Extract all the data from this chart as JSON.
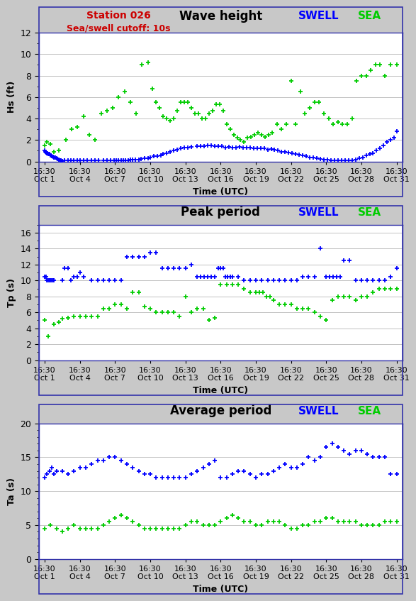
{
  "title1": "Wave height",
  "title2": "Peak period",
  "title3": "Average period",
  "station_label": "Station 026",
  "cutoff_label": "Sea/swell cutoff: 10s",
  "ylabel1": "Hs (ft)",
  "ylabel2": "Tp (s)",
  "ylabel3": "Ta (s)",
  "xlabel": "Time (UTC)",
  "legend_swell": "SWELL",
  "legend_sea": "SEA",
  "swell_color": "#0000ff",
  "sea_color": "#00cc00",
  "bg_color": "#c8c8c8",
  "plot_bg": "#ffffff",
  "title_color": "#000000",
  "station_color": "#cc0000",
  "tick_labels": [
    "16:30\nOct 1",
    "16:30\nOct 4",
    "16:30\nOct 7",
    "16:30\nOct 10",
    "16:30\nOct 13",
    "16:30\nOct 16",
    "16:30\nOct 19",
    "16:30\nOct 22",
    "16:30\nOct 25",
    "16:30\nOct 28",
    "16:30\nOct 31"
  ],
  "xtick_positions": [
    1,
    4,
    7,
    10,
    13,
    16,
    19,
    22,
    25,
    28,
    31
  ],
  "plot1_ylim": [
    0,
    12
  ],
  "plot1_yticks": [
    0,
    2,
    4,
    6,
    8,
    10,
    12
  ],
  "plot2_ylim": [
    0,
    17
  ],
  "plot2_yticks": [
    0,
    2,
    4,
    6,
    8,
    10,
    12,
    14,
    16
  ],
  "plot3_ylim": [
    0,
    20
  ],
  "plot3_yticks": [
    0,
    5,
    10,
    15,
    20
  ],
  "swell_hs_x": [
    1.0,
    1.05,
    1.1,
    1.15,
    1.2,
    1.25,
    1.3,
    1.4,
    1.5,
    1.6,
    1.7,
    1.8,
    1.9,
    2.0,
    2.1,
    2.2,
    2.3,
    2.4,
    2.5,
    2.7,
    3.0,
    3.2,
    3.5,
    3.8,
    4.0,
    4.3,
    4.6,
    5.0,
    5.3,
    5.6,
    6.0,
    6.3,
    6.6,
    6.9,
    7.1,
    7.3,
    7.5,
    7.7,
    7.9,
    8.1,
    8.3,
    8.5,
    8.7,
    9.0,
    9.2,
    9.5,
    9.8,
    10.0,
    10.3,
    10.6,
    10.9,
    11.1,
    11.4,
    11.7,
    12.0,
    12.3,
    12.6,
    12.9,
    13.2,
    13.5,
    14.0,
    14.3,
    14.6,
    14.9,
    15.2,
    15.5,
    15.8,
    16.1,
    16.4,
    16.7,
    17.0,
    17.3,
    17.6,
    17.9,
    18.2,
    18.5,
    18.8,
    19.1,
    19.4,
    19.7,
    20.0,
    20.3,
    20.6,
    20.9,
    21.2,
    21.5,
    21.8,
    22.1,
    22.4,
    22.7,
    23.0,
    23.3,
    23.6,
    23.9,
    24.2,
    24.5,
    24.8,
    25.1,
    25.4,
    25.7,
    26.0,
    26.3,
    26.6,
    26.9,
    27.2,
    27.5,
    27.8,
    28.1,
    28.4,
    28.7,
    29.0,
    29.3,
    29.6,
    29.9,
    30.2,
    30.5,
    30.8,
    31.0
  ],
  "swell_hs_y": [
    1.0,
    0.9,
    0.85,
    0.8,
    0.8,
    0.75,
    0.7,
    0.7,
    0.6,
    0.5,
    0.45,
    0.4,
    0.35,
    0.3,
    0.25,
    0.15,
    0.1,
    0.08,
    0.05,
    0.08,
    0.08,
    0.1,
    0.1,
    0.08,
    0.1,
    0.1,
    0.12,
    0.12,
    0.1,
    0.08,
    0.1,
    0.12,
    0.12,
    0.1,
    0.1,
    0.12,
    0.1,
    0.12,
    0.12,
    0.1,
    0.15,
    0.2,
    0.2,
    0.2,
    0.25,
    0.3,
    0.3,
    0.4,
    0.5,
    0.5,
    0.6,
    0.7,
    0.8,
    0.9,
    1.0,
    1.1,
    1.2,
    1.3,
    1.3,
    1.35,
    1.4,
    1.4,
    1.45,
    1.5,
    1.5,
    1.4,
    1.4,
    1.45,
    1.3,
    1.35,
    1.3,
    1.3,
    1.35,
    1.3,
    1.3,
    1.3,
    1.2,
    1.25,
    1.2,
    1.2,
    1.1,
    1.15,
    1.1,
    1.0,
    0.9,
    0.9,
    0.85,
    0.8,
    0.7,
    0.65,
    0.6,
    0.5,
    0.4,
    0.35,
    0.3,
    0.25,
    0.2,
    0.15,
    0.12,
    0.12,
    0.1,
    0.1,
    0.1,
    0.12,
    0.12,
    0.2,
    0.3,
    0.4,
    0.6,
    0.7,
    0.8,
    1.0,
    1.2,
    1.5,
    1.8,
    2.0,
    2.2,
    2.8
  ],
  "sea_hs_x": [
    1.0,
    1.2,
    1.5,
    1.8,
    2.2,
    2.8,
    3.3,
    3.8,
    4.3,
    4.8,
    5.3,
    5.8,
    6.3,
    6.8,
    7.3,
    7.8,
    8.3,
    8.8,
    9.3,
    9.8,
    10.2,
    10.5,
    10.8,
    11.1,
    11.4,
    11.7,
    12.0,
    12.3,
    12.6,
    12.9,
    13.2,
    13.5,
    13.8,
    14.1,
    14.4,
    14.7,
    15.0,
    15.3,
    15.6,
    15.9,
    16.2,
    16.5,
    16.8,
    17.1,
    17.4,
    17.7,
    18.0,
    18.3,
    18.6,
    18.9,
    19.2,
    19.5,
    19.8,
    20.1,
    20.4,
    20.8,
    21.2,
    21.6,
    22.0,
    22.4,
    22.8,
    23.2,
    23.6,
    24.0,
    24.4,
    24.8,
    25.2,
    25.6,
    26.0,
    26.4,
    26.8,
    27.2,
    27.6,
    28.0,
    28.4,
    28.8,
    29.2,
    29.6,
    30.0,
    30.5,
    31.0
  ],
  "sea_hs_y": [
    1.5,
    1.8,
    1.6,
    0.9,
    1.0,
    2.0,
    3.0,
    3.2,
    4.2,
    2.5,
    2.0,
    4.5,
    4.7,
    5.0,
    6.0,
    6.5,
    5.5,
    4.5,
    9.0,
    9.2,
    6.8,
    5.5,
    5.0,
    4.2,
    4.0,
    3.8,
    4.0,
    4.7,
    5.5,
    5.5,
    5.5,
    5.0,
    4.5,
    4.5,
    4.0,
    4.0,
    4.5,
    4.7,
    5.3,
    5.3,
    4.7,
    3.5,
    3.0,
    2.5,
    2.2,
    2.0,
    1.8,
    2.2,
    2.3,
    2.5,
    2.7,
    2.5,
    2.3,
    2.5,
    2.7,
    3.5,
    3.0,
    3.5,
    7.5,
    3.5,
    6.5,
    4.5,
    5.0,
    5.5,
    5.5,
    4.5,
    4.0,
    3.5,
    3.7,
    3.5,
    3.5,
    4.0,
    7.5,
    8.0,
    8.0,
    8.5,
    9.0,
    9.0,
    8.0,
    9.0,
    9.0
  ],
  "swell_tp_x": [
    1.0,
    1.1,
    1.2,
    1.3,
    1.4,
    1.5,
    1.6,
    1.7,
    1.8,
    2.5,
    2.7,
    3.0,
    3.2,
    3.5,
    3.8,
    4.0,
    4.3,
    5.0,
    5.5,
    6.0,
    6.5,
    7.0,
    7.5,
    8.0,
    8.5,
    9.0,
    9.5,
    10.0,
    10.5,
    11.0,
    11.5,
    12.0,
    12.5,
    13.0,
    13.5,
    14.0,
    14.3,
    14.6,
    14.9,
    15.2,
    15.5,
    15.8,
    16.0,
    16.2,
    16.4,
    16.6,
    16.8,
    17.0,
    17.5,
    18.0,
    18.5,
    19.0,
    19.5,
    20.0,
    20.5,
    21.0,
    21.5,
    22.0,
    22.5,
    23.0,
    23.5,
    24.0,
    24.5,
    25.0,
    25.3,
    25.6,
    25.9,
    26.2,
    26.5,
    27.0,
    27.5,
    28.0,
    28.5,
    29.0,
    29.5,
    30.0,
    30.5,
    31.0
  ],
  "swell_tp_y": [
    10.5,
    10.5,
    10.0,
    10.0,
    10.0,
    10.0,
    10.0,
    10.0,
    10.0,
    10.0,
    11.5,
    11.5,
    10.0,
    10.5,
    10.5,
    11.0,
    10.5,
    10.0,
    10.0,
    10.0,
    10.0,
    10.0,
    10.0,
    13.0,
    13.0,
    13.0,
    13.0,
    13.5,
    13.5,
    11.5,
    11.5,
    11.5,
    11.5,
    11.5,
    12.0,
    10.5,
    10.5,
    10.5,
    10.5,
    10.5,
    10.5,
    11.5,
    11.5,
    11.5,
    10.5,
    10.5,
    10.5,
    10.5,
    10.5,
    10.0,
    10.0,
    10.0,
    10.0,
    10.0,
    10.0,
    10.0,
    10.0,
    10.0,
    10.0,
    10.5,
    10.5,
    10.5,
    14.0,
    10.5,
    10.5,
    10.5,
    10.5,
    10.5,
    12.5,
    12.5,
    10.0,
    10.0,
    10.0,
    10.0,
    10.0,
    10.0,
    10.5,
    11.5
  ],
  "sea_tp_x": [
    1.0,
    1.3,
    1.8,
    2.2,
    2.5,
    3.0,
    3.5,
    4.0,
    4.5,
    5.0,
    5.5,
    6.0,
    6.5,
    7.0,
    7.5,
    8.0,
    8.5,
    9.0,
    9.5,
    10.0,
    10.5,
    11.0,
    11.5,
    12.0,
    12.5,
    13.0,
    13.5,
    14.0,
    14.5,
    15.0,
    15.5,
    16.0,
    16.5,
    17.0,
    17.5,
    18.0,
    18.5,
    19.0,
    19.3,
    19.6,
    19.9,
    20.2,
    20.5,
    21.0,
    21.5,
    22.0,
    22.5,
    23.0,
    23.5,
    24.0,
    24.5,
    25.0,
    25.5,
    26.0,
    26.5,
    27.0,
    27.5,
    28.0,
    28.5,
    29.0,
    29.5,
    30.0,
    30.5,
    31.0
  ],
  "sea_tp_y": [
    5.0,
    3.0,
    4.5,
    4.8,
    5.2,
    5.3,
    5.5,
    5.5,
    5.5,
    5.5,
    5.5,
    6.5,
    6.5,
    7.0,
    7.0,
    6.5,
    8.5,
    8.5,
    6.7,
    6.5,
    6.0,
    6.0,
    6.0,
    6.0,
    5.5,
    8.0,
    6.0,
    6.5,
    6.5,
    5.0,
    5.3,
    9.5,
    9.5,
    9.5,
    9.5,
    9.0,
    8.5,
    8.5,
    8.5,
    8.5,
    8.0,
    8.0,
    7.5,
    7.0,
    7.0,
    7.0,
    6.5,
    6.5,
    6.5,
    6.0,
    5.5,
    5.0,
    7.5,
    8.0,
    8.0,
    8.0,
    7.5,
    8.0,
    8.0,
    8.5,
    9.0,
    9.0,
    9.0,
    9.0
  ],
  "swell_ta_x": [
    1.0,
    1.2,
    1.4,
    1.6,
    1.8,
    2.0,
    2.5,
    3.0,
    3.5,
    4.0,
    4.5,
    5.0,
    5.5,
    6.0,
    6.5,
    7.0,
    7.5,
    8.0,
    8.5,
    9.0,
    9.5,
    10.0,
    10.5,
    11.0,
    11.5,
    12.0,
    12.5,
    13.0,
    13.5,
    14.0,
    14.5,
    15.0,
    15.5,
    16.0,
    16.5,
    17.0,
    17.5,
    18.0,
    18.5,
    19.0,
    19.5,
    20.0,
    20.5,
    21.0,
    21.5,
    22.0,
    22.5,
    23.0,
    23.5,
    24.0,
    24.5,
    25.0,
    25.5,
    26.0,
    26.5,
    27.0,
    27.5,
    28.0,
    28.5,
    29.0,
    29.5,
    30.0,
    30.5,
    31.0
  ],
  "swell_ta_y": [
    12.0,
    12.5,
    13.0,
    13.5,
    12.5,
    13.0,
    13.0,
    12.5,
    13.0,
    13.5,
    13.5,
    14.0,
    14.5,
    14.5,
    15.0,
    15.0,
    14.5,
    14.0,
    13.5,
    13.0,
    12.5,
    12.5,
    12.0,
    12.0,
    12.0,
    12.0,
    12.0,
    12.0,
    12.5,
    13.0,
    13.5,
    14.0,
    14.5,
    12.0,
    12.0,
    12.5,
    13.0,
    13.0,
    12.5,
    12.0,
    12.5,
    12.5,
    13.0,
    13.5,
    14.0,
    13.5,
    13.5,
    14.0,
    15.0,
    14.5,
    15.0,
    16.5,
    17.0,
    16.5,
    16.0,
    15.5,
    16.0,
    16.0,
    15.5,
    15.0,
    15.0,
    15.0,
    12.5,
    12.5
  ],
  "sea_ta_x": [
    1.0,
    1.5,
    2.0,
    2.5,
    3.0,
    3.5,
    4.0,
    4.5,
    5.0,
    5.5,
    6.0,
    6.5,
    7.0,
    7.5,
    8.0,
    8.5,
    9.0,
    9.5,
    10.0,
    10.5,
    11.0,
    11.5,
    12.0,
    12.5,
    13.0,
    13.5,
    14.0,
    14.5,
    15.0,
    15.5,
    16.0,
    16.5,
    17.0,
    17.5,
    18.0,
    18.5,
    19.0,
    19.5,
    20.0,
    20.5,
    21.0,
    21.5,
    22.0,
    22.5,
    23.0,
    23.5,
    24.0,
    24.5,
    25.0,
    25.5,
    26.0,
    26.5,
    27.0,
    27.5,
    28.0,
    28.5,
    29.0,
    29.5,
    30.0,
    30.5,
    31.0
  ],
  "sea_ta_y": [
    4.5,
    5.0,
    4.5,
    4.0,
    4.5,
    5.0,
    4.5,
    4.5,
    4.5,
    4.5,
    5.0,
    5.5,
    6.0,
    6.5,
    6.0,
    5.5,
    5.0,
    4.5,
    4.5,
    4.5,
    4.5,
    4.5,
    4.5,
    4.5,
    5.0,
    5.5,
    5.5,
    5.0,
    5.0,
    5.0,
    5.5,
    6.0,
    6.5,
    6.0,
    5.5,
    5.5,
    5.0,
    5.0,
    5.5,
    5.5,
    5.5,
    5.0,
    4.5,
    4.5,
    5.0,
    5.0,
    5.5,
    5.5,
    6.0,
    6.0,
    5.5,
    5.5,
    5.5,
    5.5,
    5.0,
    5.0,
    5.0,
    5.0,
    5.5,
    5.5,
    5.5
  ]
}
